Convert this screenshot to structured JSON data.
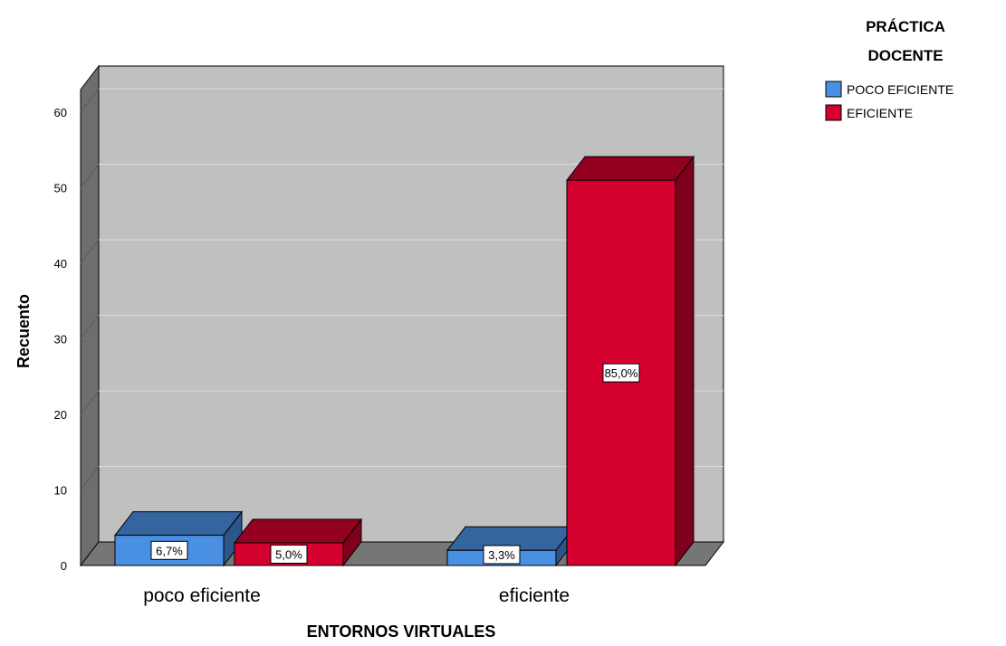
{
  "chart_data": {
    "type": "bar",
    "style": "3d-clustered",
    "categories": [
      "poco eficiente",
      "eficiente"
    ],
    "series": [
      {
        "name": "POCO EFICIENTE",
        "color": "#4a90e2",
        "values": [
          4,
          2
        ],
        "labels": [
          "6,7%",
          "3,3%"
        ]
      },
      {
        "name": "EFICIENTE",
        "color": "#d4002e",
        "values": [
          3,
          51
        ],
        "labels": [
          "5,0%",
          "85,0%"
        ]
      }
    ],
    "xlabel": "ENTORNOS VIRTUALES",
    "ylabel": "Recuento",
    "ylim": [
      0,
      60
    ],
    "yticks": [
      0,
      10,
      20,
      30,
      40,
      50,
      60
    ],
    "legend": {
      "title_lines": [
        "PRÁCTICA",
        "DOCENTE"
      ],
      "position": "top-right"
    },
    "grid": true,
    "colors": {
      "wall": "#c0c0c0",
      "side_wall": "#6e6e6e",
      "floor": "#767676",
      "gridline": "#dcdcdc"
    }
  }
}
